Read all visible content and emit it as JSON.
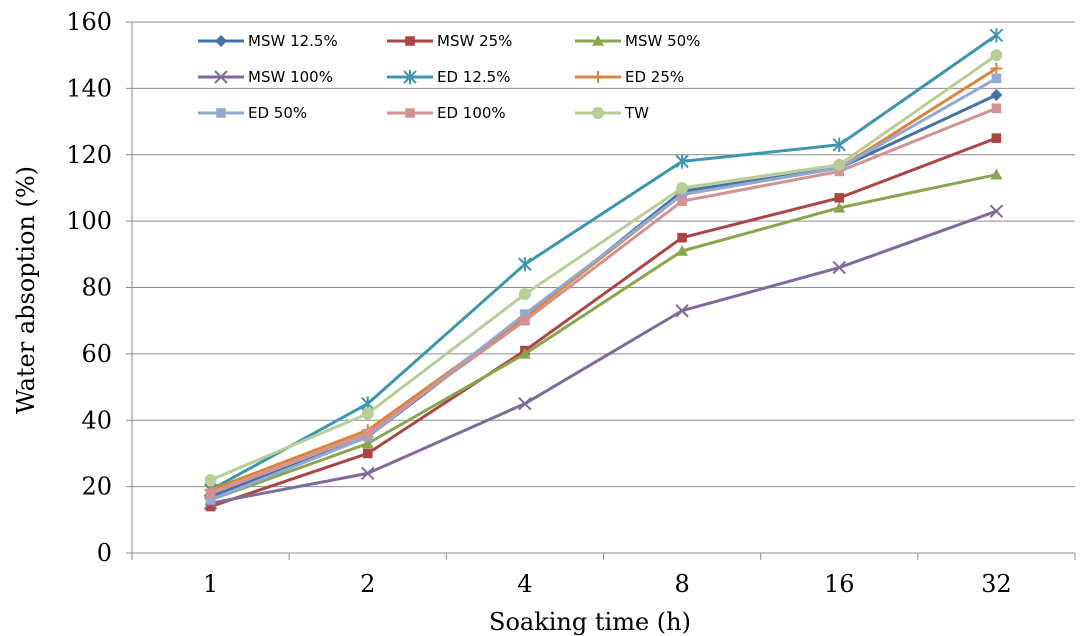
{
  "chart_data": {
    "type": "line",
    "xlabel": "Soaking time (h)",
    "ylabel": "Water absoption (%)",
    "categories": [
      "1",
      "2",
      "4",
      "8",
      "16",
      "32"
    ],
    "ylim": [
      0,
      160
    ],
    "yticks": [
      0,
      20,
      40,
      60,
      80,
      100,
      120,
      140,
      160
    ],
    "grid": "horizontal",
    "legend": "top-left (inside plot, 3 columns)",
    "series": [
      {
        "name": "MSW 12.5%",
        "color": "#4572A7",
        "marker": "diamond",
        "values": [
          17,
          35,
          71,
          109,
          116,
          138
        ]
      },
      {
        "name": "MSW 25%",
        "color": "#AA4643",
        "marker": "square",
        "values": [
          14,
          30,
          61,
          95,
          107,
          125
        ]
      },
      {
        "name": "MSW 50%",
        "color": "#89A54E",
        "marker": "triangle",
        "values": [
          16,
          33,
          60,
          91,
          104,
          114
        ]
      },
      {
        "name": "MSW 100%",
        "color": "#80699B",
        "marker": "x",
        "values": [
          15,
          24,
          45,
          73,
          86,
          103
        ]
      },
      {
        "name": "ED 12.5%",
        "color": "#3D96AE",
        "marker": "star",
        "values": [
          19,
          45,
          87,
          118,
          123,
          156
        ]
      },
      {
        "name": "ED 25%",
        "color": "#DB843D",
        "marker": "plus",
        "values": [
          19,
          37,
          71,
          108,
          116,
          146
        ]
      },
      {
        "name": "ED 50%",
        "color": "#93A9CF",
        "marker": "square",
        "values": [
          16,
          35,
          72,
          108,
          116,
          143
        ]
      },
      {
        "name": "ED 100%",
        "color": "#D19392",
        "marker": "square",
        "values": [
          18,
          36,
          70,
          106,
          115,
          134
        ]
      },
      {
        "name": "TW",
        "color": "#B9CD96",
        "marker": "circle",
        "values": [
          22,
          42,
          78,
          110,
          117,
          150
        ]
      }
    ]
  }
}
